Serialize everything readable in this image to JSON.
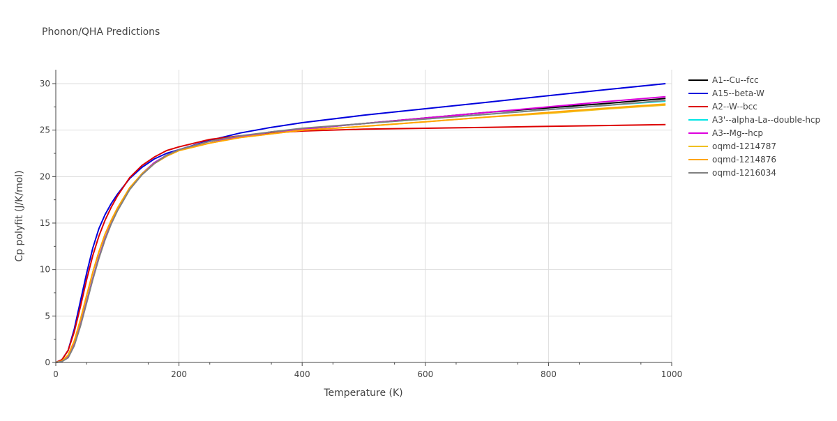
{
  "chart_data": {
    "type": "line",
    "title": "Phonon/QHA Predictions",
    "xlabel": "Temperature (K)",
    "ylabel": "Cp polyfit (J/K/mol)",
    "xlim": [
      0,
      1000
    ],
    "ylim": [
      0,
      31.5
    ],
    "xticks": [
      0,
      200,
      400,
      600,
      800,
      1000
    ],
    "yticks": [
      0,
      5,
      10,
      15,
      20,
      25,
      30
    ],
    "grid": true,
    "legend_position": "right",
    "series": [
      {
        "name": "A1--Cu--fcc",
        "color": "#000000",
        "x": [
          0,
          10,
          20,
          30,
          40,
          50,
          60,
          70,
          80,
          90,
          100,
          120,
          140,
          160,
          180,
          200,
          250,
          300,
          350,
          400,
          500,
          600,
          700,
          800,
          900,
          990
        ],
        "y": [
          0,
          0.1,
          0.6,
          1.9,
          4.0,
          6.5,
          9.0,
          11.3,
          13.3,
          15.0,
          16.4,
          18.7,
          20.3,
          21.5,
          22.3,
          22.9,
          23.8,
          24.3,
          24.8,
          25.1,
          25.7,
          26.3,
          26.9,
          27.4,
          27.9,
          28.4
        ]
      },
      {
        "name": "A15--beta-W",
        "color": "#0000dd",
        "x": [
          0,
          10,
          20,
          30,
          40,
          50,
          60,
          70,
          80,
          90,
          100,
          120,
          140,
          160,
          180,
          200,
          250,
          300,
          350,
          400,
          500,
          600,
          700,
          800,
          900,
          990
        ],
        "y": [
          0,
          0.3,
          1.3,
          3.6,
          6.6,
          9.6,
          12.3,
          14.4,
          15.9,
          17.1,
          18.1,
          19.8,
          21.0,
          21.9,
          22.5,
          22.9,
          23.9,
          24.7,
          25.3,
          25.8,
          26.6,
          27.3,
          28.0,
          28.7,
          29.4,
          30.0
        ]
      },
      {
        "name": "A2--W--bcc",
        "color": "#dd0000",
        "x": [
          0,
          10,
          20,
          30,
          40,
          50,
          60,
          70,
          80,
          90,
          100,
          120,
          140,
          160,
          180,
          200,
          250,
          300,
          350,
          400,
          500,
          600,
          700,
          800,
          900,
          990
        ],
        "y": [
          0,
          0.3,
          1.3,
          3.3,
          6.0,
          8.9,
          11.5,
          13.6,
          15.3,
          16.7,
          17.9,
          19.9,
          21.2,
          22.1,
          22.8,
          23.2,
          24.0,
          24.4,
          24.7,
          24.9,
          25.1,
          25.2,
          25.3,
          25.4,
          25.5,
          25.6
        ]
      },
      {
        "name": "A3'--alpha-La--double-hcp",
        "color": "#00e5e5",
        "x": [
          0,
          10,
          20,
          30,
          40,
          50,
          60,
          70,
          80,
          90,
          100,
          120,
          140,
          160,
          180,
          200,
          250,
          300,
          350,
          400,
          500,
          600,
          700,
          800,
          900,
          990
        ],
        "y": [
          0,
          0.1,
          0.6,
          1.9,
          4.0,
          6.5,
          9.0,
          11.3,
          13.3,
          15.0,
          16.4,
          18.7,
          20.3,
          21.5,
          22.3,
          22.9,
          23.8,
          24.3,
          24.8,
          25.1,
          25.7,
          26.2,
          26.7,
          27.2,
          27.7,
          28.1
        ]
      },
      {
        "name": "A3--Mg--hcp",
        "color": "#dd00dd",
        "x": [
          0,
          10,
          20,
          30,
          40,
          50,
          60,
          70,
          80,
          90,
          100,
          120,
          140,
          160,
          180,
          200,
          250,
          300,
          350,
          400,
          500,
          600,
          700,
          800,
          900,
          990
        ],
        "y": [
          0,
          0.1,
          0.6,
          1.9,
          4.0,
          6.5,
          9.0,
          11.3,
          13.3,
          15.0,
          16.4,
          18.7,
          20.3,
          21.5,
          22.3,
          22.9,
          23.8,
          24.3,
          24.8,
          25.1,
          25.7,
          26.3,
          26.9,
          27.5,
          28.1,
          28.6
        ]
      },
      {
        "name": "oqmd-1214787",
        "color": "#f0c020",
        "x": [
          0,
          10,
          20,
          30,
          40,
          50,
          60,
          70,
          80,
          90,
          100,
          120,
          140,
          160,
          180,
          200,
          250,
          300,
          350,
          400,
          500,
          600,
          700,
          800,
          900,
          990
        ],
        "y": [
          0,
          0.15,
          0.8,
          2.3,
          4.6,
          7.2,
          9.7,
          11.9,
          13.8,
          15.3,
          16.6,
          18.8,
          20.3,
          21.4,
          22.2,
          22.8,
          23.6,
          24.2,
          24.6,
          25.0,
          25.4,
          25.9,
          26.4,
          26.8,
          27.3,
          27.7
        ]
      },
      {
        "name": "oqmd-1214876",
        "color": "#ffa500",
        "x": [
          0,
          10,
          20,
          30,
          40,
          50,
          60,
          70,
          80,
          90,
          100,
          120,
          140,
          160,
          180,
          200,
          250,
          300,
          350,
          400,
          500,
          600,
          700,
          800,
          900,
          990
        ],
        "y": [
          0,
          0.15,
          0.8,
          2.3,
          4.6,
          7.2,
          9.7,
          11.9,
          13.8,
          15.3,
          16.6,
          18.8,
          20.3,
          21.4,
          22.2,
          22.8,
          23.6,
          24.2,
          24.6,
          25.0,
          25.4,
          25.9,
          26.4,
          26.9,
          27.4,
          27.8
        ]
      },
      {
        "name": "oqmd-1216034",
        "color": "#808080",
        "x": [
          0,
          10,
          20,
          30,
          40,
          50,
          60,
          70,
          80,
          90,
          100,
          120,
          140,
          160,
          180,
          200,
          250,
          300,
          350,
          400,
          500,
          600,
          700,
          800,
          900,
          990
        ],
        "y": [
          0,
          0.1,
          0.5,
          1.8,
          3.9,
          6.4,
          8.9,
          11.2,
          13.2,
          14.9,
          16.3,
          18.6,
          20.2,
          21.4,
          22.3,
          22.9,
          23.8,
          24.4,
          24.8,
          25.2,
          25.7,
          26.2,
          26.7,
          27.2,
          27.7,
          28.2
        ]
      }
    ]
  }
}
